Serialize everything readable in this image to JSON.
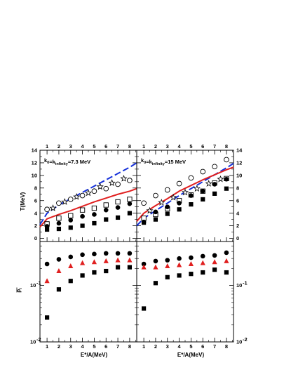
{
  "chart_data": [
    {
      "id": "top-left",
      "type": "scatter",
      "label_main": "k",
      "label_sub0": "0",
      "label_mid": "=k",
      "label_sub1": "infinity",
      "label_tail": "=7.3 MeV",
      "ylabel": "T(MeV)",
      "xlim": [
        0.4,
        8.6
      ],
      "ylim": [
        -0.5,
        14
      ],
      "xticks": [
        "1",
        "2",
        "3",
        "4",
        "5",
        "6",
        "7",
        "8"
      ],
      "yticks": [
        "0",
        "2",
        "4",
        "6",
        "8",
        "10",
        "12",
        "14"
      ],
      "series": [
        {
          "marker": "circle-open",
          "x": [
            1,
            2,
            3,
            4,
            5,
            6,
            7,
            8
          ],
          "y": [
            4.6,
            5.6,
            6.2,
            6.8,
            7.5,
            7.9,
            8.6,
            9.2
          ]
        },
        {
          "marker": "star-open",
          "x": [
            1.5,
            2.5,
            3.5,
            4.5,
            5.5,
            6.5,
            7.5
          ],
          "y": [
            4.8,
            5.8,
            6.6,
            7.2,
            8.2,
            8.8,
            9.5
          ]
        },
        {
          "marker": "square-open",
          "x": [
            1,
            2,
            3,
            4,
            5,
            6,
            7,
            8
          ],
          "y": [
            2.3,
            3.2,
            3.6,
            4.5,
            4.8,
            5.3,
            5.8,
            6.2
          ]
        },
        {
          "marker": "circle-filled",
          "x": [
            1,
            2,
            3,
            4,
            5,
            6,
            7,
            8
          ],
          "y": [
            1.9,
            2.4,
            2.9,
            3.5,
            3.8,
            4.5,
            4.9,
            5.5
          ]
        },
        {
          "marker": "square-filled",
          "x": [
            1,
            2,
            3,
            4,
            5,
            6,
            7,
            8
          ],
          "y": [
            1.4,
            1.5,
            1.7,
            2.0,
            2.4,
            3.0,
            3.3,
            4.0
          ]
        }
      ],
      "curves": [
        {
          "style": "dashed",
          "color": "#1530d9",
          "x": [
            0.4,
            1,
            2,
            3,
            4,
            5,
            6,
            7,
            8,
            8.6
          ],
          "y": [
            2.2,
            4.0,
            5.3,
            6.3,
            7.3,
            8.3,
            9.3,
            10.3,
            11.3,
            12.0
          ]
        },
        {
          "style": "solid",
          "color": "#e02020",
          "x": [
            0.4,
            1,
            2,
            3,
            4,
            5,
            6,
            7,
            8,
            8.6
          ],
          "y": [
            1.8,
            3.1,
            3.8,
            4.4,
            5.1,
            5.8,
            6.4,
            7.0,
            7.5,
            7.9
          ]
        }
      ]
    },
    {
      "id": "top-right",
      "type": "scatter",
      "label_main": "k",
      "label_sub0": "0",
      "label_mid": "=k",
      "label_sub1": "infinity",
      "label_tail": "=15 MeV",
      "xlim": [
        0.4,
        8.6
      ],
      "ylim": [
        -0.5,
        14
      ],
      "xticks": [
        "1",
        "2",
        "3",
        "4",
        "5",
        "6",
        "7",
        "8"
      ],
      "yticks": [
        "0",
        "2",
        "4",
        "6",
        "8",
        "10",
        "12",
        "14"
      ],
      "series": [
        {
          "marker": "circle-open",
          "x": [
            1,
            2,
            3,
            4,
            5,
            6,
            7,
            8
          ],
          "y": [
            5.6,
            6.8,
            7.7,
            8.7,
            9.6,
            10.6,
            11.4,
            12.5
          ]
        },
        {
          "marker": "star-open",
          "x": [
            1.5,
            2.5,
            3.5,
            4.5,
            5.5,
            6.5,
            7.5
          ],
          "y": [
            4.4,
            5.7,
            6.5,
            7.3,
            7.9,
            8.7,
            9.4
          ]
        },
        {
          "marker": "square-open",
          "x": [
            1,
            2,
            3,
            4,
            5,
            6,
            7,
            8
          ],
          "y": [
            3.2,
            3.8,
            4.7,
            6.0,
            6.9,
            7.5,
            8.8,
            9.5
          ]
        },
        {
          "marker": "circle-filled",
          "x": [
            1,
            2,
            3,
            4,
            5,
            6,
            7,
            8
          ],
          "y": [
            2.6,
            4.2,
            5.0,
            5.6,
            6.8,
            7.5,
            8.6,
            9.4
          ]
        },
        {
          "marker": "square-filled",
          "x": [
            1,
            2,
            3,
            4,
            5,
            6,
            7,
            8
          ],
          "y": [
            2.5,
            3.0,
            3.9,
            4.6,
            5.4,
            6.2,
            7.1,
            7.9
          ]
        }
      ],
      "curves": [
        {
          "style": "dashed",
          "color": "#1530d9",
          "x": [
            0.4,
            1,
            2,
            3,
            4,
            5,
            6,
            7,
            8,
            8.6
          ],
          "y": [
            2.0,
            3.2,
            4.4,
            5.6,
            6.8,
            7.9,
            9.0,
            10.1,
            11.2,
            11.9
          ]
        },
        {
          "style": "solid",
          "color": "#e02020",
          "x": [
            0.4,
            1,
            2,
            3,
            4,
            5,
            6,
            7,
            8,
            8.6
          ],
          "y": [
            2.7,
            4.0,
            5.2,
            6.3,
            7.5,
            8.4,
            9.3,
            10.1,
            10.9,
            11.3
          ]
        }
      ]
    },
    {
      "id": "bottom-left",
      "type": "scatter",
      "ylabel_main": "ρ",
      "ylabel_sub": "i",
      "xlabel": "E*/A(MeV)",
      "yscale": "log",
      "xlim": [
        0.4,
        8.6
      ],
      "ylim": [
        0.01,
        0.6
      ],
      "xticks": [
        "1",
        "2",
        "3",
        "4",
        "5",
        "6",
        "7",
        "8"
      ],
      "yticks": [
        "10",
        "10"
      ],
      "ytick_exps": [
        "-2",
        "-1"
      ],
      "ytick_values": [
        0.01,
        0.1
      ],
      "series": [
        {
          "marker": "circle-filled",
          "x": [
            1,
            2,
            3,
            4,
            5,
            6,
            7,
            8
          ],
          "y": [
            0.24,
            0.29,
            0.32,
            0.35,
            0.36,
            0.37,
            0.37,
            0.37
          ]
        },
        {
          "marker": "triangle-filled",
          "color": "#e02020",
          "x": [
            1,
            2,
            3,
            4,
            5,
            6,
            7,
            8
          ],
          "y": [
            0.12,
            0.18,
            0.22,
            0.25,
            0.26,
            0.27,
            0.28,
            0.28
          ]
        },
        {
          "marker": "square-filled",
          "x": [
            1,
            2,
            3,
            4,
            5,
            6,
            7,
            8
          ],
          "y": [
            0.027,
            0.085,
            0.12,
            0.15,
            0.17,
            0.18,
            0.21,
            0.21
          ]
        }
      ]
    },
    {
      "id": "bottom-right",
      "type": "scatter",
      "xlabel": "E*/A(MeV)",
      "yscale": "log",
      "xlim": [
        0.4,
        8.6
      ],
      "ylim": [
        0.01,
        0.6
      ],
      "xticks": [
        "1",
        "2",
        "3",
        "4",
        "5",
        "6",
        "7",
        "8"
      ],
      "yticks": [
        "10",
        "10"
      ],
      "ytick_exps": [
        "-2",
        "-1"
      ],
      "ytick_values": [
        0.01,
        0.1
      ],
      "series": [
        {
          "marker": "circle-filled",
          "x": [
            1,
            2,
            3,
            4,
            5,
            6,
            7,
            8
          ],
          "y": [
            0.24,
            0.27,
            0.28,
            0.3,
            0.31,
            0.33,
            0.34,
            0.38
          ]
        },
        {
          "marker": "triangle-filled",
          "color": "#e02020",
          "x": [
            1,
            2,
            3,
            4,
            5,
            6,
            7,
            8
          ],
          "y": [
            0.21,
            0.21,
            0.22,
            0.23,
            0.24,
            0.25,
            0.26,
            0.27
          ]
        },
        {
          "marker": "square-filled",
          "x": [
            1,
            2,
            3,
            4,
            5,
            6,
            7,
            8
          ],
          "y": [
            0.039,
            0.11,
            0.14,
            0.15,
            0.16,
            0.17,
            0.19,
            0.17
          ]
        }
      ]
    }
  ]
}
